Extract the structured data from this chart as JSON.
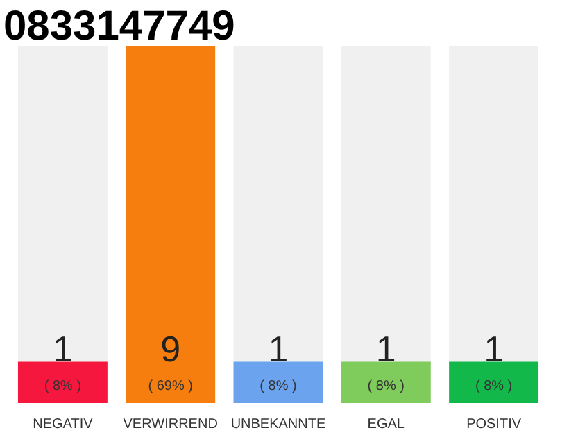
{
  "chart_data": {
    "type": "bar",
    "title": "0833147749",
    "categories": [
      "NEGATIV",
      "VERWIRREND",
      "UNBEKANNTE",
      "EGAL",
      "POSITIV"
    ],
    "values": [
      8,
      69,
      8,
      8,
      8
    ],
    "colors": [
      "#f5173d",
      "#f57e0f",
      "#6ca3ee",
      "#7fcb5c",
      "#13b84a"
    ],
    "value_labels": [
      "( 8% )",
      "( 69% )",
      "( 8% )",
      "( 8% )",
      "( 8% )"
    ],
    "annotations": [
      "1",
      "9",
      "1",
      "1",
      "1"
    ],
    "grid": false
  }
}
